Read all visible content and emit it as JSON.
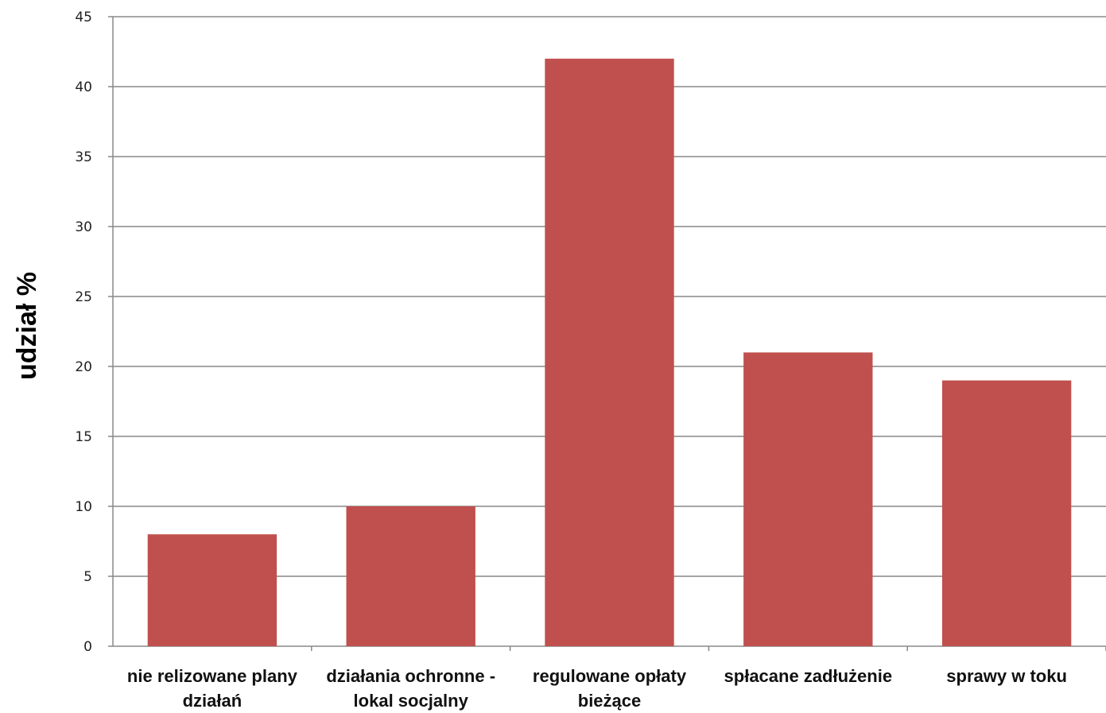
{
  "chart_data": {
    "type": "bar",
    "title": "",
    "xlabel": "",
    "ylabel": "udział %",
    "ylim": [
      0,
      45
    ],
    "y_ticks": [
      0,
      5,
      10,
      15,
      20,
      25,
      30,
      35,
      40,
      45
    ],
    "grid": true,
    "legend": "none",
    "categories": [
      [
        "nie relizowane plany",
        "działań"
      ],
      [
        "działania ochronne -",
        "lokal socjalny"
      ],
      [
        "regulowane opłaty",
        "bieżące"
      ],
      [
        "spłacane zadłużenie"
      ],
      [
        "sprawy w toku"
      ]
    ],
    "values": [
      8,
      10,
      42,
      21,
      19
    ],
    "colors": {
      "bar": "#C0504D",
      "grid": "#888888",
      "axis": "#888888"
    }
  }
}
